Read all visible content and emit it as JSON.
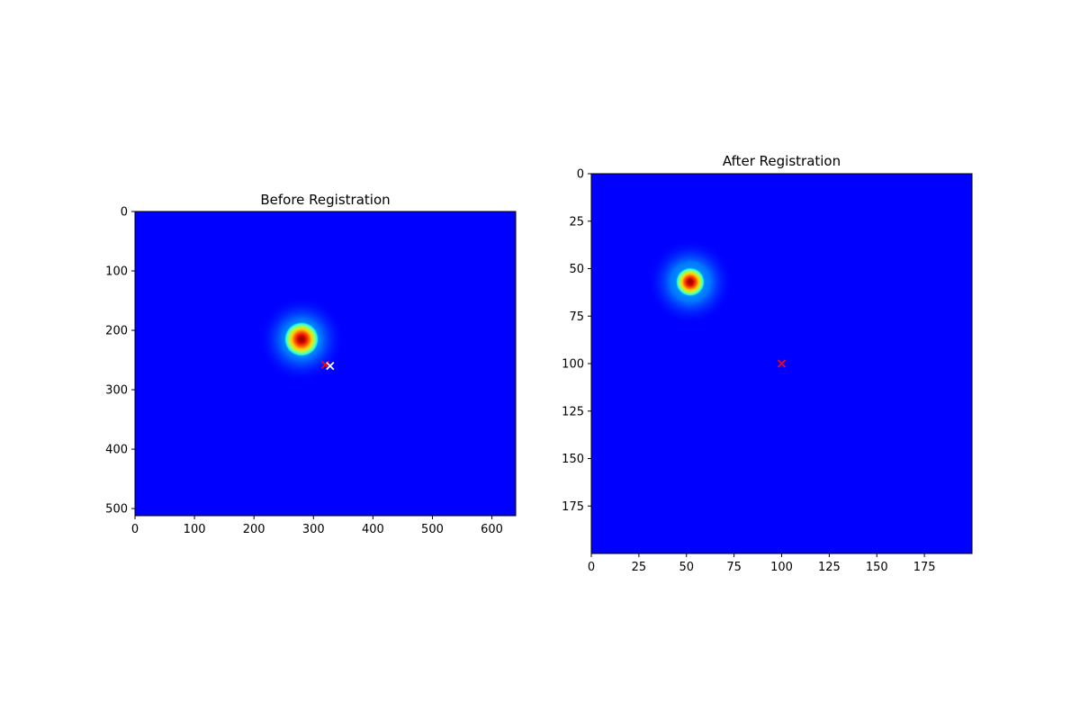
{
  "chart_data": [
    {
      "type": "heatmap",
      "title": "Before Registration",
      "xlabel": "",
      "ylabel": "",
      "xlim": [
        0,
        640
      ],
      "ylim": [
        512,
        0
      ],
      "xticks": [
        0,
        100,
        200,
        300,
        400,
        500,
        600
      ],
      "yticks": [
        0,
        100,
        200,
        300,
        400,
        500
      ],
      "colormap": "jet",
      "background_color": "#0000ff",
      "blob": {
        "cx": 280,
        "cy": 215,
        "r_outer": 48,
        "r_core": 12
      },
      "markers": [
        {
          "x": 320,
          "y": 258,
          "symbol": "x",
          "color": "#ff0000"
        },
        {
          "x": 328,
          "y": 260,
          "symbol": "x",
          "color": "#ffffff"
        }
      ]
    },
    {
      "type": "heatmap",
      "title": "After Registration",
      "xlabel": "",
      "ylabel": "",
      "xlim": [
        0,
        200
      ],
      "ylim": [
        200,
        0
      ],
      "xticks": [
        0,
        25,
        50,
        75,
        100,
        125,
        150,
        175
      ],
      "yticks": [
        0,
        25,
        50,
        75,
        100,
        125,
        150,
        175
      ],
      "colormap": "jet",
      "background_color": "#0000ff",
      "blob": {
        "cx": 52,
        "cy": 57,
        "r_outer": 48,
        "r_core": 10
      },
      "markers": [
        {
          "x": 100,
          "y": 100,
          "symbol": "x",
          "color": "#ff0000"
        }
      ]
    }
  ]
}
